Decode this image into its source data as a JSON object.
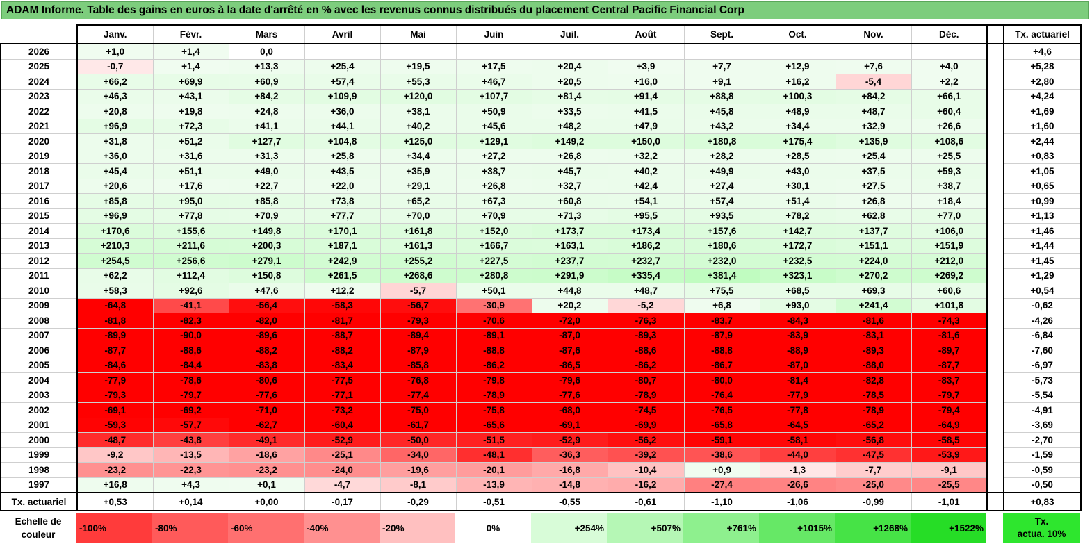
{
  "title": "ADAM Informe. Table des gains en euros à la date d'arrêté en % avec les revenus connus distribués du placement Central Pacific Financial Corp",
  "header": {
    "months": [
      "Janv.",
      "Févr.",
      "Mars",
      "Avril",
      "Mai",
      "Juin",
      "Juil.",
      "Août",
      "Sept.",
      "Oct.",
      "Nov.",
      "Déc."
    ],
    "actuarial": "Tx. actuariel"
  },
  "rows": [
    {
      "year": "2026",
      "values": [
        "+1,0",
        "+1,4",
        "0,0",
        "",
        "",
        "",
        "",
        "",
        "",
        "",
        "",
        ""
      ],
      "act": "+4,6"
    },
    {
      "year": "2025",
      "values": [
        "-0,7",
        "+1,4",
        "+13,3",
        "+25,4",
        "+19,5",
        "+17,5",
        "+20,4",
        "+3,9",
        "+7,7",
        "+12,9",
        "+7,6",
        "+4,0"
      ],
      "act": "+5,28"
    },
    {
      "year": "2024",
      "values": [
        "+66,2",
        "+69,9",
        "+60,9",
        "+57,4",
        "+55,3",
        "+46,7",
        "+20,5",
        "+16,0",
        "+9,1",
        "+16,2",
        "-5,4",
        "+2,2"
      ],
      "act": "+2,80"
    },
    {
      "year": "2023",
      "values": [
        "+46,3",
        "+43,1",
        "+84,2",
        "+109,9",
        "+120,0",
        "+107,7",
        "+81,4",
        "+91,4",
        "+88,8",
        "+100,3",
        "+84,2",
        "+66,1"
      ],
      "act": "+4,24"
    },
    {
      "year": "2022",
      "values": [
        "+20,8",
        "+19,8",
        "+24,8",
        "+36,0",
        "+38,1",
        "+50,9",
        "+33,5",
        "+41,5",
        "+45,8",
        "+48,9",
        "+48,7",
        "+60,4"
      ],
      "act": "+1,69"
    },
    {
      "year": "2021",
      "values": [
        "+96,9",
        "+72,3",
        "+41,1",
        "+44,1",
        "+40,2",
        "+45,6",
        "+48,2",
        "+47,9",
        "+43,2",
        "+34,4",
        "+32,9",
        "+26,6"
      ],
      "act": "+1,60"
    },
    {
      "year": "2020",
      "values": [
        "+31,8",
        "+51,2",
        "+127,7",
        "+104,8",
        "+125,0",
        "+129,1",
        "+149,2",
        "+150,0",
        "+180,8",
        "+175,4",
        "+135,9",
        "+108,6"
      ],
      "act": "+2,44"
    },
    {
      "year": "2019",
      "values": [
        "+36,0",
        "+31,6",
        "+31,3",
        "+25,8",
        "+34,4",
        "+27,2",
        "+26,8",
        "+32,2",
        "+28,2",
        "+28,5",
        "+25,4",
        "+25,5"
      ],
      "act": "+0,83"
    },
    {
      "year": "2018",
      "values": [
        "+45,4",
        "+51,1",
        "+49,0",
        "+43,5",
        "+35,9",
        "+38,7",
        "+45,7",
        "+40,2",
        "+49,9",
        "+43,0",
        "+37,5",
        "+59,3"
      ],
      "act": "+1,05"
    },
    {
      "year": "2017",
      "values": [
        "+20,6",
        "+17,6",
        "+22,7",
        "+22,0",
        "+29,1",
        "+26,8",
        "+32,7",
        "+42,4",
        "+27,4",
        "+30,1",
        "+27,5",
        "+38,7"
      ],
      "act": "+0,65"
    },
    {
      "year": "2016",
      "values": [
        "+85,8",
        "+95,0",
        "+85,8",
        "+73,8",
        "+65,2",
        "+67,3",
        "+60,8",
        "+54,1",
        "+57,4",
        "+51,4",
        "+26,8",
        "+18,4"
      ],
      "act": "+0,99"
    },
    {
      "year": "2015",
      "values": [
        "+96,9",
        "+77,8",
        "+70,9",
        "+77,7",
        "+70,0",
        "+70,9",
        "+71,3",
        "+95,5",
        "+93,5",
        "+78,2",
        "+62,8",
        "+77,0"
      ],
      "act": "+1,13"
    },
    {
      "year": "2014",
      "values": [
        "+170,6",
        "+155,6",
        "+149,8",
        "+170,1",
        "+161,8",
        "+152,0",
        "+173,7",
        "+173,4",
        "+157,6",
        "+142,7",
        "+137,7",
        "+106,0"
      ],
      "act": "+1,46"
    },
    {
      "year": "2013",
      "values": [
        "+210,3",
        "+211,6",
        "+200,3",
        "+187,1",
        "+161,3",
        "+166,7",
        "+163,1",
        "+186,2",
        "+180,6",
        "+172,7",
        "+151,1",
        "+151,9"
      ],
      "act": "+1,44"
    },
    {
      "year": "2012",
      "values": [
        "+254,5",
        "+256,6",
        "+279,1",
        "+242,9",
        "+255,2",
        "+227,5",
        "+237,7",
        "+232,7",
        "+232,0",
        "+232,5",
        "+224,0",
        "+212,0"
      ],
      "act": "+1,45"
    },
    {
      "year": "2011",
      "values": [
        "+62,2",
        "+112,4",
        "+150,8",
        "+261,5",
        "+268,6",
        "+280,8",
        "+291,9",
        "+335,4",
        "+381,4",
        "+323,1",
        "+270,2",
        "+269,2"
      ],
      "act": "+1,29"
    },
    {
      "year": "2010",
      "values": [
        "+58,3",
        "+92,6",
        "+47,6",
        "+12,2",
        "-5,7",
        "+50,1",
        "+44,8",
        "+48,7",
        "+75,5",
        "+68,5",
        "+69,3",
        "+60,6"
      ],
      "act": "+0,54"
    },
    {
      "year": "2009",
      "values": [
        "-64,8",
        "-41,1",
        "-56,4",
        "-58,3",
        "-56,7",
        "-30,9",
        "+20,2",
        "-5,2",
        "+6,8",
        "+93,0",
        "+241,4",
        "+101,8"
      ],
      "act": "-0,62"
    },
    {
      "year": "2008",
      "values": [
        "-81,8",
        "-82,3",
        "-82,0",
        "-81,7",
        "-79,3",
        "-70,6",
        "-72,0",
        "-76,3",
        "-83,7",
        "-84,3",
        "-81,6",
        "-74,3"
      ],
      "act": "-4,26"
    },
    {
      "year": "2007",
      "values": [
        "-89,9",
        "-90,0",
        "-89,6",
        "-88,7",
        "-89,4",
        "-89,1",
        "-87,0",
        "-89,3",
        "-87,9",
        "-83,9",
        "-83,1",
        "-81,6"
      ],
      "act": "-6,84"
    },
    {
      "year": "2006",
      "values": [
        "-87,7",
        "-88,6",
        "-88,2",
        "-88,2",
        "-87,9",
        "-88,8",
        "-87,6",
        "-88,6",
        "-88,8",
        "-88,9",
        "-89,3",
        "-89,7"
      ],
      "act": "-7,60"
    },
    {
      "year": "2005",
      "values": [
        "-84,6",
        "-84,4",
        "-83,8",
        "-83,4",
        "-85,8",
        "-86,2",
        "-86,5",
        "-86,2",
        "-86,7",
        "-87,0",
        "-88,0",
        "-87,7"
      ],
      "act": "-6,97"
    },
    {
      "year": "2004",
      "values": [
        "-77,9",
        "-78,6",
        "-80,6",
        "-77,5",
        "-76,8",
        "-79,8",
        "-79,6",
        "-80,7",
        "-80,0",
        "-81,4",
        "-82,8",
        "-83,7"
      ],
      "act": "-5,73"
    },
    {
      "year": "2003",
      "values": [
        "-79,3",
        "-79,7",
        "-77,6",
        "-77,1",
        "-77,4",
        "-78,9",
        "-77,6",
        "-78,9",
        "-76,4",
        "-77,9",
        "-78,5",
        "-79,7"
      ],
      "act": "-5,54"
    },
    {
      "year": "2002",
      "values": [
        "-69,1",
        "-69,2",
        "-71,0",
        "-73,2",
        "-75,0",
        "-75,8",
        "-68,0",
        "-74,5",
        "-76,5",
        "-77,8",
        "-78,9",
        "-79,4"
      ],
      "act": "-4,91"
    },
    {
      "year": "2001",
      "values": [
        "-59,3",
        "-57,7",
        "-62,7",
        "-60,4",
        "-61,7",
        "-65,6",
        "-69,1",
        "-69,9",
        "-65,8",
        "-64,5",
        "-65,2",
        "-64,9"
      ],
      "act": "-3,69"
    },
    {
      "year": "2000",
      "values": [
        "-48,7",
        "-43,8",
        "-49,1",
        "-52,9",
        "-50,0",
        "-51,5",
        "-52,9",
        "-56,2",
        "-59,1",
        "-58,1",
        "-56,8",
        "-58,5"
      ],
      "act": "-2,70"
    },
    {
      "year": "1999",
      "values": [
        "-9,2",
        "-13,5",
        "-18,6",
        "-25,1",
        "-34,0",
        "-48,1",
        "-36,3",
        "-39,2",
        "-38,6",
        "-44,0",
        "-47,5",
        "-53,9"
      ],
      "act": "-1,59"
    },
    {
      "year": "1998",
      "values": [
        "-23,2",
        "-22,3",
        "-23,2",
        "-24,0",
        "-19,6",
        "-20,1",
        "-16,8",
        "-10,4",
        "+0,9",
        "-1,3",
        "-7,7",
        "-9,1"
      ],
      "act": "-0,59"
    },
    {
      "year": "1997",
      "values": [
        "+16,8",
        "+4,3",
        "+0,1",
        "-4,7",
        "-8,1",
        "-13,9",
        "-14,8",
        "-16,2",
        "-27,4",
        "-26,6",
        "-25,0",
        "-25,5"
      ],
      "act": "-0,50"
    }
  ],
  "footer": {
    "label": "Tx. actuariel",
    "values": [
      "+0,53",
      "+0,14",
      "+0,00",
      "-0,17",
      "-0,29",
      "-0,51",
      "-0,55",
      "-0,61",
      "-1,10",
      "-1,06",
      "-0,99",
      "-1,01"
    ],
    "act": "+0,83"
  },
  "scale": {
    "label_line1": "Echelle de",
    "label_line2": "couleur",
    "steps": [
      "-100%",
      "-80%",
      "-60%",
      "-40%",
      "-20%",
      "0%",
      "+254%",
      "+507%",
      "+761%",
      "+1015%",
      "+1268%",
      "+1522%"
    ],
    "colors": [
      "#ff3b3b",
      "#ff5a5a",
      "#ff7070",
      "#ff9090",
      "#ffc0c0",
      "#ffffff",
      "#d8fcd8",
      "#b5f7b5",
      "#8ef08e",
      "#66e866",
      "#46e346",
      "#26dd26"
    ],
    "tx_line1": "Tx.",
    "tx_line2": "actua. 10%",
    "tx_color": "#2ee62e"
  },
  "colors": {
    "title_bg": "#7dcd7d",
    "negative_strong": "#ff0000",
    "positive_light": "#e8fbe8"
  }
}
